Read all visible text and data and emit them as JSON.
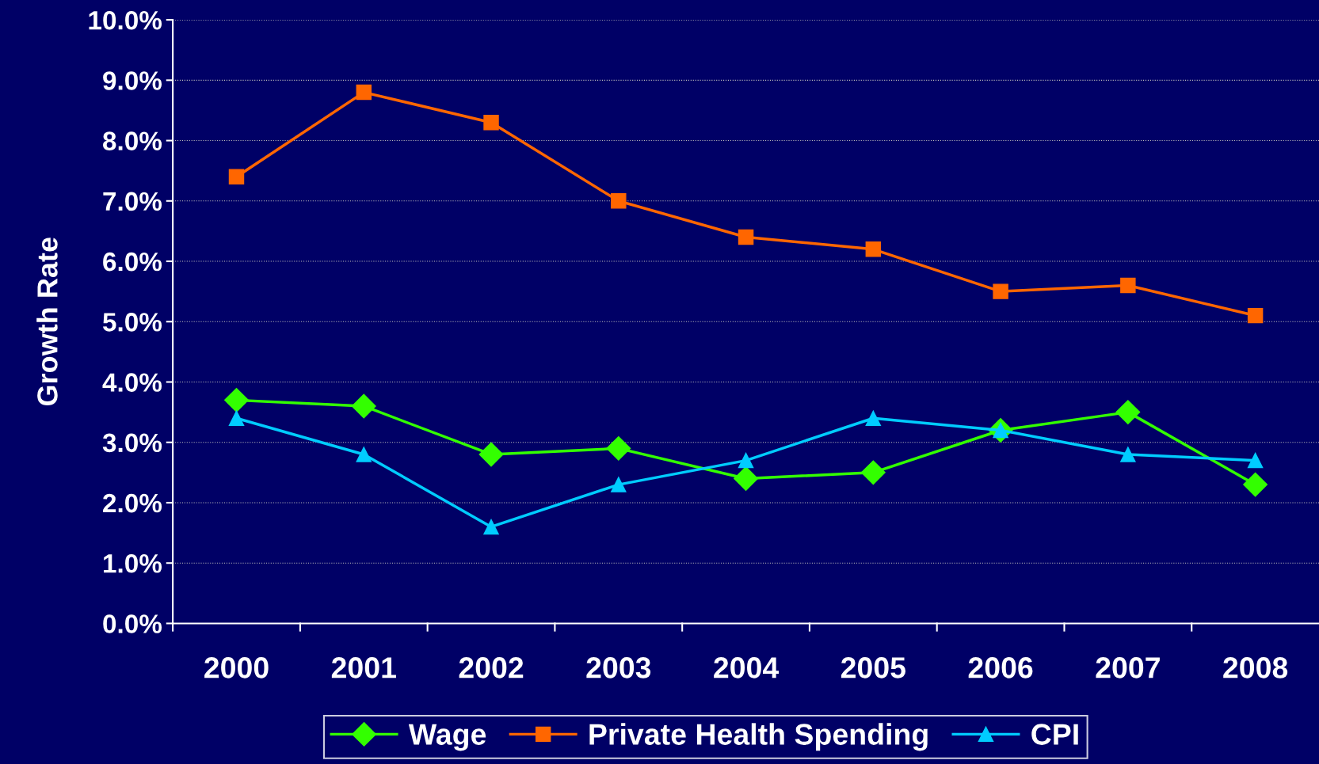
{
  "chart_data": {
    "type": "line",
    "ylabel": "Growth Rate",
    "categories": [
      "2000",
      "2001",
      "2002",
      "2003",
      "2004",
      "2005",
      "2006",
      "2007",
      "2008"
    ],
    "series": [
      {
        "name": "Wage",
        "color": "#33ff00",
        "marker": "diamond",
        "values": [
          3.7,
          3.6,
          2.8,
          2.9,
          2.4,
          2.5,
          3.2,
          3.5,
          2.3
        ]
      },
      {
        "name": "Private Health Spending",
        "color": "#ff6600",
        "marker": "square",
        "values": [
          7.4,
          8.8,
          8.3,
          7.0,
          6.4,
          6.2,
          5.5,
          5.6,
          5.1
        ]
      },
      {
        "name": "CPI",
        "color": "#00ccff",
        "marker": "triangle",
        "values": [
          3.4,
          2.8,
          1.6,
          2.3,
          2.7,
          3.4,
          3.2,
          2.8,
          2.7
        ]
      }
    ],
    "ylim": [
      0,
      10
    ],
    "yticks": [
      {
        "value": 0,
        "label": "0.0%"
      },
      {
        "value": 1,
        "label": "1.0%"
      },
      {
        "value": 2,
        "label": "2.0%"
      },
      {
        "value": 3,
        "label": "3.0%"
      },
      {
        "value": 4,
        "label": "4.0%"
      },
      {
        "value": 5,
        "label": "5.0%"
      },
      {
        "value": 6,
        "label": "6.0%"
      },
      {
        "value": 7,
        "label": "7.0%"
      },
      {
        "value": 8,
        "label": "8.0%"
      },
      {
        "value": 9,
        "label": "9.0%"
      },
      {
        "value": 10,
        "label": "10.0%"
      }
    ],
    "grid": "y",
    "legend": "bottom",
    "line_style": "solid"
  }
}
